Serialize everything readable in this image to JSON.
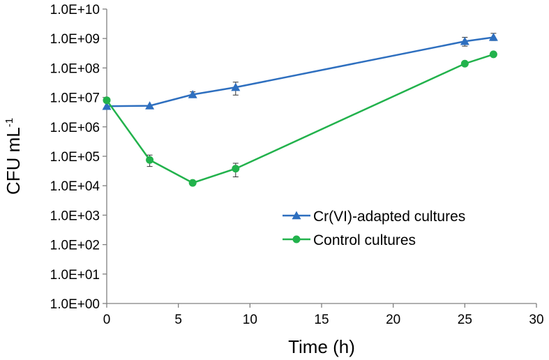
{
  "chart_data": {
    "type": "line",
    "title": "",
    "xlabel": "Time (h)",
    "ylabel": {
      "base": "CFU mL",
      "superscript": "-1"
    },
    "xlim": [
      0,
      30
    ],
    "x_ticks": [
      0,
      5,
      10,
      15,
      20,
      25,
      30
    ],
    "x_tick_labels": [
      "0",
      "5",
      "10",
      "15",
      "20",
      "25",
      "30"
    ],
    "yscale": "log",
    "ylim": [
      1,
      10000000000
    ],
    "y_ticks": [
      1,
      10,
      100,
      1000,
      10000,
      100000,
      1000000,
      10000000,
      100000000,
      1000000000,
      10000000000
    ],
    "y_tick_labels": [
      "1.0E+00",
      "1.0E+01",
      "1.0E+02",
      "1.0E+03",
      "1.0E+04",
      "1.0E+05",
      "1.0E+06",
      "1.0E+07",
      "1.0E+08",
      "1.0E+09",
      "1.0E+10"
    ],
    "grid": false,
    "legend_position": "bottom-right",
    "series": [
      {
        "name": "Cr(VI)-adapted cultures",
        "color": "#2E6FBF",
        "marker": "triangle",
        "x": [
          0,
          3,
          6,
          9,
          25,
          27
        ],
        "y": [
          5000000,
          5200000,
          12500000,
          22000000,
          800000000,
          1100000000
        ],
        "err_low": [
          null,
          null,
          10000000,
          12000000,
          550000000,
          850000000
        ],
        "err_high": [
          null,
          null,
          15500000,
          33000000,
          1100000000,
          1500000000
        ]
      },
      {
        "name": "Control cultures",
        "color": "#22B24C",
        "marker": "circle",
        "x": [
          0,
          3,
          6,
          9,
          25,
          27
        ],
        "y": [
          8000000,
          75000,
          12500,
          38000,
          140000000,
          290000000
        ],
        "err_low": [
          null,
          45000,
          10500,
          20000,
          null,
          null
        ],
        "err_high": [
          null,
          110000,
          14500,
          58000,
          null,
          null
        ]
      }
    ]
  }
}
